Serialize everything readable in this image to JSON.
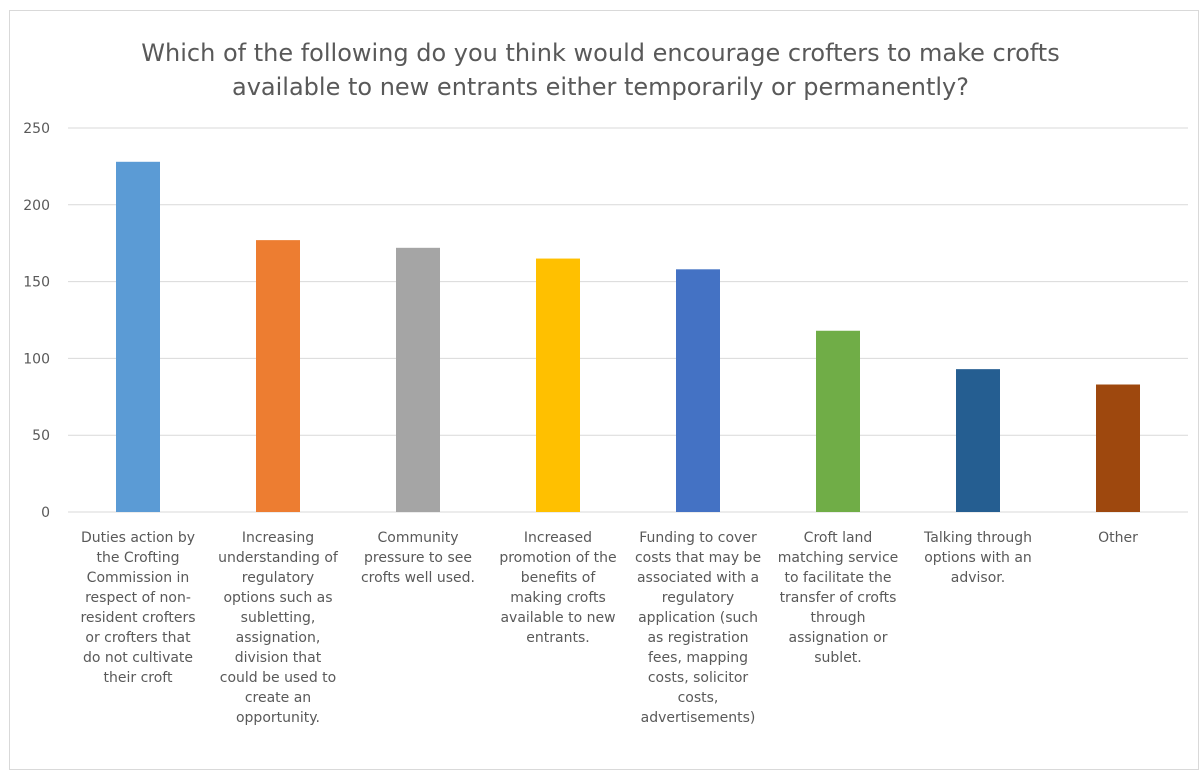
{
  "chart_data": {
    "type": "bar",
    "title": "Which of the following do you think would encourage crofters to make crofts\navailable to new entrants either temporarily or permanently?",
    "xlabel": "",
    "ylabel": "",
    "ylim": [
      0,
      250
    ],
    "yticks": [
      0,
      50,
      100,
      150,
      200,
      250
    ],
    "grid": true,
    "legend": "none",
    "categories": [
      "Duties action by the Crofting Commission in respect of non-resident crofters or crofters that do not cultivate their croft",
      "Increasing understanding of regulatory options such as subletting, assignation, division that could be used to create an opportunity.",
      "Community pressure to see crofts well used.",
      "Increased promotion of the benefits of making crofts available to new entrants.",
      "Funding to cover costs that may be associated with a regulatory application (such as registration fees, mapping costs, solicitor costs, advertisements)",
      "Croft land matching service to facilitate the transfer of crofts through assignation or sublet.",
      "Talking through options with an advisor.",
      "Other"
    ],
    "category_label_lines": [
      [
        "Duties action by",
        "the Crofting",
        "Commission in",
        "respect of non-",
        "resident crofters",
        "or crofters that",
        "do not cultivate",
        "their croft"
      ],
      [
        "Increasing",
        "understanding of",
        "regulatory",
        "options such as",
        "subletting,",
        "assignation,",
        "division that",
        "could be used to",
        "create an",
        "opportunity."
      ],
      [
        "Community",
        "pressure to see",
        "crofts well used."
      ],
      [
        "Increased",
        "promotion of the",
        "benefits of",
        "making crofts",
        "available to new",
        "entrants."
      ],
      [
        "Funding to cover",
        "costs that may be",
        "associated with a",
        "regulatory",
        "application (such",
        "as registration",
        "fees, mapping",
        "costs, solicitor",
        "costs,",
        "advertisements)"
      ],
      [
        "Croft land",
        "matching service",
        "to facilitate the",
        "transfer of crofts",
        "through",
        "assignation or",
        "sublet."
      ],
      [
        "Talking through",
        "options with an",
        "advisor."
      ],
      [
        "Other"
      ]
    ],
    "values": [
      228,
      177,
      172,
      165,
      158,
      118,
      93,
      83
    ],
    "colors": [
      "#5b9bd5",
      "#ed7d31",
      "#a5a5a5",
      "#ffc000",
      "#4472c4",
      "#70ad47",
      "#255e91",
      "#9e480e"
    ],
    "gridline_color": "#d9d9d9",
    "text_color": "#595959"
  }
}
